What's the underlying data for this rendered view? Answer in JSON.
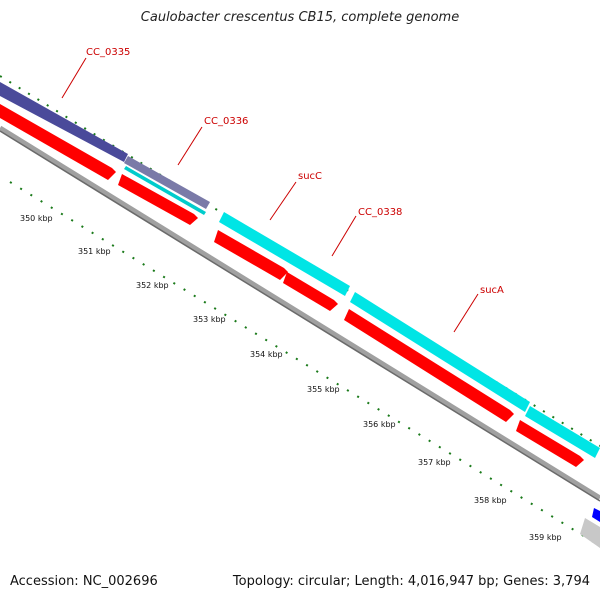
{
  "title": "Caulobacter crescentus CB15, complete genome",
  "footer": {
    "accession": "Accession: NC_002696",
    "summary": "Topology: circular; Length: 4,016,947 bp; Genes: 3,794"
  },
  "colors": {
    "cds": "#ff0000",
    "gene_label": "#cc0000",
    "backbone": "#8a8a8a",
    "tick": "#1a7a1a",
    "purple_feature": "#4a4a9a",
    "cyan_feature": "#00e5e5",
    "blue_feature": "#0000ff"
  },
  "gene_labels": [
    "CC_0335",
    "CC_0336",
    "sucC",
    "CC_0338",
    "sucA"
  ],
  "kbp_ticks": [
    "350 kbp",
    "351 kbp",
    "352 kbp",
    "353 kbp",
    "354 kbp",
    "355 kbp",
    "356 kbp",
    "357 kbp",
    "358 kbp",
    "359 kbp"
  ]
}
